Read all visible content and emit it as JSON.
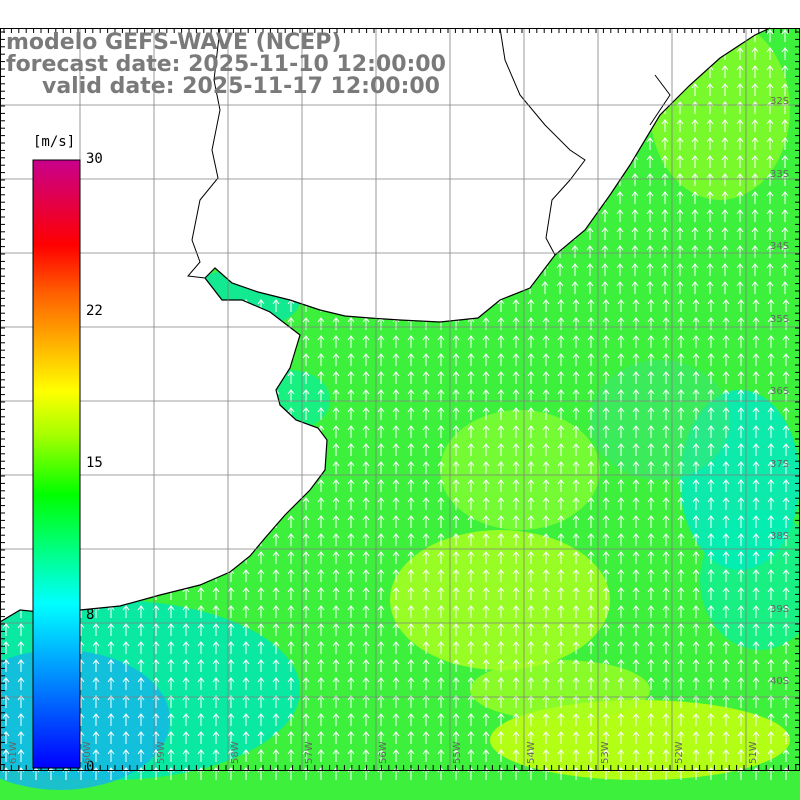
{
  "title": {
    "line1": "modelo GEFS-WAVE (NCEP)",
    "line2": "forecast date: 2025-11-10 12:00:00",
    "line3": "valid date: 2025-11-17 12:00:00"
  },
  "colorbar": {
    "unit": "[m/s]",
    "ticks": [
      "30",
      "22",
      "15",
      "8",
      "0"
    ],
    "colors": [
      "#0000ff",
      "#00ffff",
      "#00ff00",
      "#ffff00",
      "#ff0000",
      "#c8008c"
    ]
  },
  "map": {
    "lat_labels": [
      "32S",
      "33S",
      "34S",
      "35S",
      "36S",
      "37S",
      "38S",
      "39S",
      "40S"
    ],
    "lon_labels": [
      "61W",
      "60W",
      "59W",
      "58W",
      "57W",
      "56W",
      "55W",
      "54W",
      "53W",
      "52W",
      "51W"
    ],
    "land_color": "#ffffff",
    "coast_color": "#000000",
    "grid_color": "#808080"
  }
}
